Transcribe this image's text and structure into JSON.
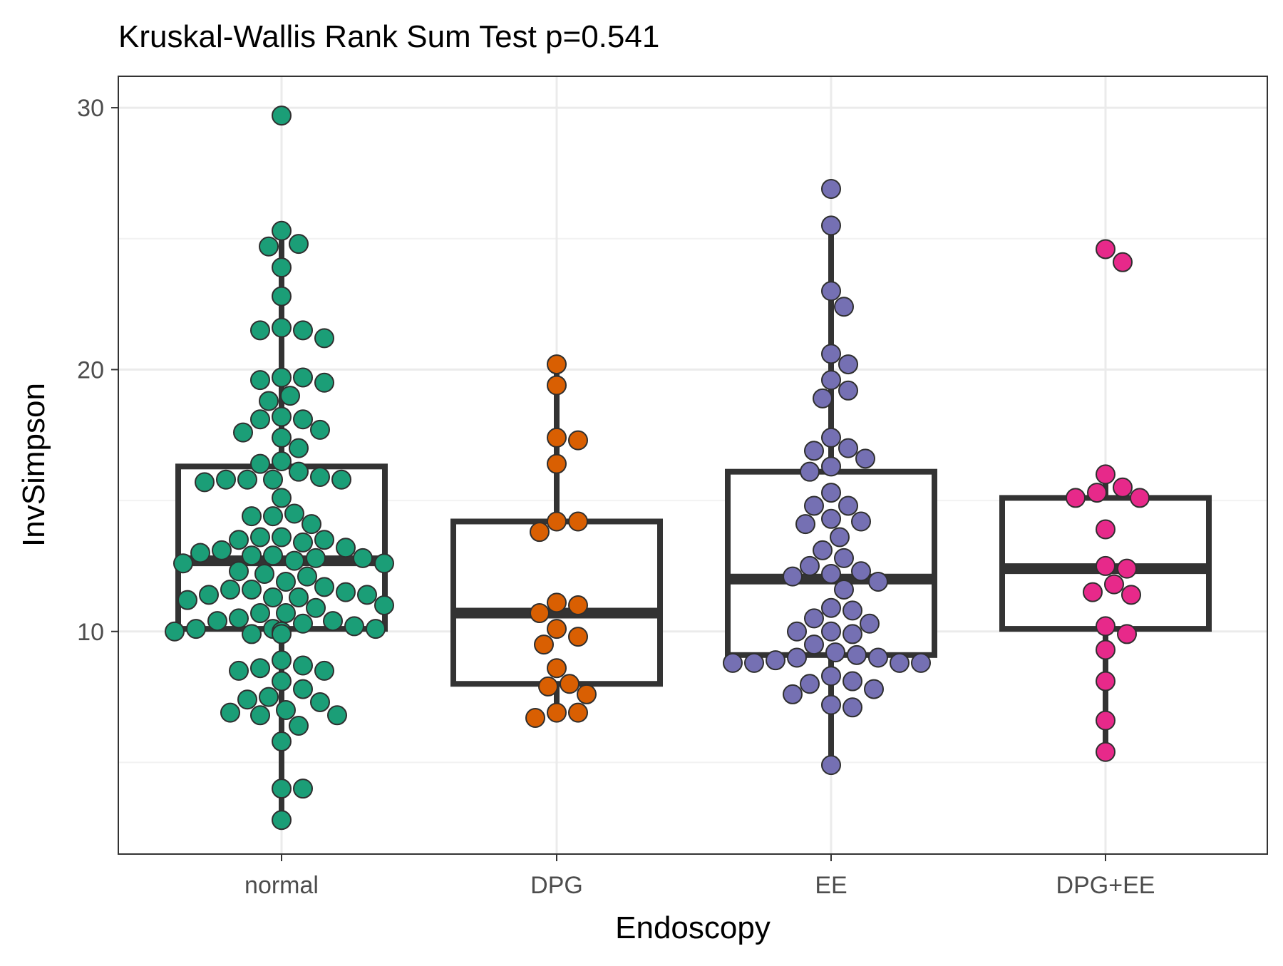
{
  "chart_data": {
    "type": "boxplot",
    "title": "Kruskal-Wallis Rank Sum Test p=0.541",
    "xlabel": "Endoscopy",
    "ylabel": "InvSimpson",
    "categories": [
      "normal",
      "DPG",
      "EE",
      "DPG+EE"
    ],
    "yticks": [
      "10",
      "20",
      "30"
    ],
    "ylim": [
      1.5,
      31.2
    ],
    "grid": true,
    "legend": "none",
    "colors": [
      "#1b9e77",
      "#d95f02",
      "#7570b3",
      "#e7298a"
    ],
    "boxes": [
      {
        "category": "normal",
        "q1": 10.1,
        "median": 12.7,
        "q3": 16.3,
        "whisker_low": 2.8,
        "whisker_high": 25.3
      },
      {
        "category": "DPG",
        "q1": 8.0,
        "median": 10.7,
        "q3": 14.2,
        "whisker_low": 6.6,
        "whisker_high": 20.1
      },
      {
        "category": "EE",
        "q1": 9.1,
        "median": 12.0,
        "q3": 16.1,
        "whisker_low": 4.9,
        "whisker_high": 25.3
      },
      {
        "category": "DPG+EE",
        "q1": 10.1,
        "median": 12.4,
        "q3": 15.1,
        "whisker_low": 5.5,
        "whisker_high": 15.9
      }
    ],
    "points": [
      {
        "group": "normal",
        "values": [
          29.7,
          25.3,
          24.8,
          24.7,
          23.9,
          22.8,
          21.6,
          21.5,
          21.5,
          21.2,
          19.7,
          19.7,
          19.6,
          19.5,
          19.0,
          18.8,
          18.2,
          18.1,
          18.1,
          17.7,
          17.6,
          17.4,
          17.0,
          16.5,
          16.4,
          16.1,
          15.9,
          15.8,
          15.8,
          15.8,
          15.8,
          15.7,
          15.1,
          14.5,
          14.4,
          14.4,
          14.1,
          13.6,
          13.6,
          13.5,
          13.5,
          13.4,
          13.2,
          13.1,
          13.0,
          12.9,
          12.9,
          12.8,
          12.8,
          12.7,
          12.6,
          12.6,
          12.3,
          12.2,
          12.1,
          11.9,
          11.7,
          11.6,
          11.6,
          11.5,
          11.4,
          11.4,
          11.3,
          11.3,
          11.2,
          11.0,
          10.9,
          10.7,
          10.7,
          10.5,
          10.4,
          10.4,
          10.3,
          10.2,
          10.1,
          10.1,
          10.1,
          10.0,
          10.0,
          9.9,
          9.9,
          8.9,
          8.7,
          8.6,
          8.5,
          8.5,
          8.1,
          7.8,
          7.5,
          7.4,
          7.3,
          7.0,
          6.9,
          6.8,
          6.8,
          6.4,
          5.8,
          4.0,
          4.0,
          2.8
        ]
      },
      {
        "group": "DPG",
        "values": [
          20.2,
          19.4,
          17.4,
          17.3,
          16.4,
          14.2,
          14.2,
          13.8,
          11.1,
          11.0,
          10.7,
          10.1,
          9.8,
          9.5,
          8.6,
          8.0,
          7.9,
          7.6,
          6.9,
          6.9,
          6.7
        ]
      },
      {
        "group": "EE",
        "values": [
          26.9,
          25.5,
          23.0,
          22.4,
          20.6,
          20.2,
          19.6,
          19.2,
          18.9,
          17.4,
          17.0,
          16.9,
          16.6,
          16.3,
          16.1,
          15.3,
          14.8,
          14.8,
          14.3,
          14.2,
          14.1,
          13.6,
          13.1,
          12.8,
          12.5,
          12.3,
          12.2,
          12.1,
          11.9,
          11.6,
          10.9,
          10.8,
          10.5,
          10.3,
          10.0,
          10.0,
          9.9,
          9.5,
          9.2,
          9.1,
          9.0,
          9.0,
          8.9,
          8.8,
          8.8,
          8.8,
          8.8,
          8.3,
          8.1,
          8.0,
          7.8,
          7.6,
          7.2,
          7.1,
          4.9
        ]
      },
      {
        "group": "DPG+EE",
        "values": [
          24.6,
          24.1,
          16.0,
          15.5,
          15.3,
          15.1,
          15.1,
          13.9,
          12.5,
          12.4,
          11.8,
          11.5,
          11.4,
          10.2,
          9.9,
          9.3,
          8.1,
          6.6,
          5.4
        ]
      }
    ]
  }
}
